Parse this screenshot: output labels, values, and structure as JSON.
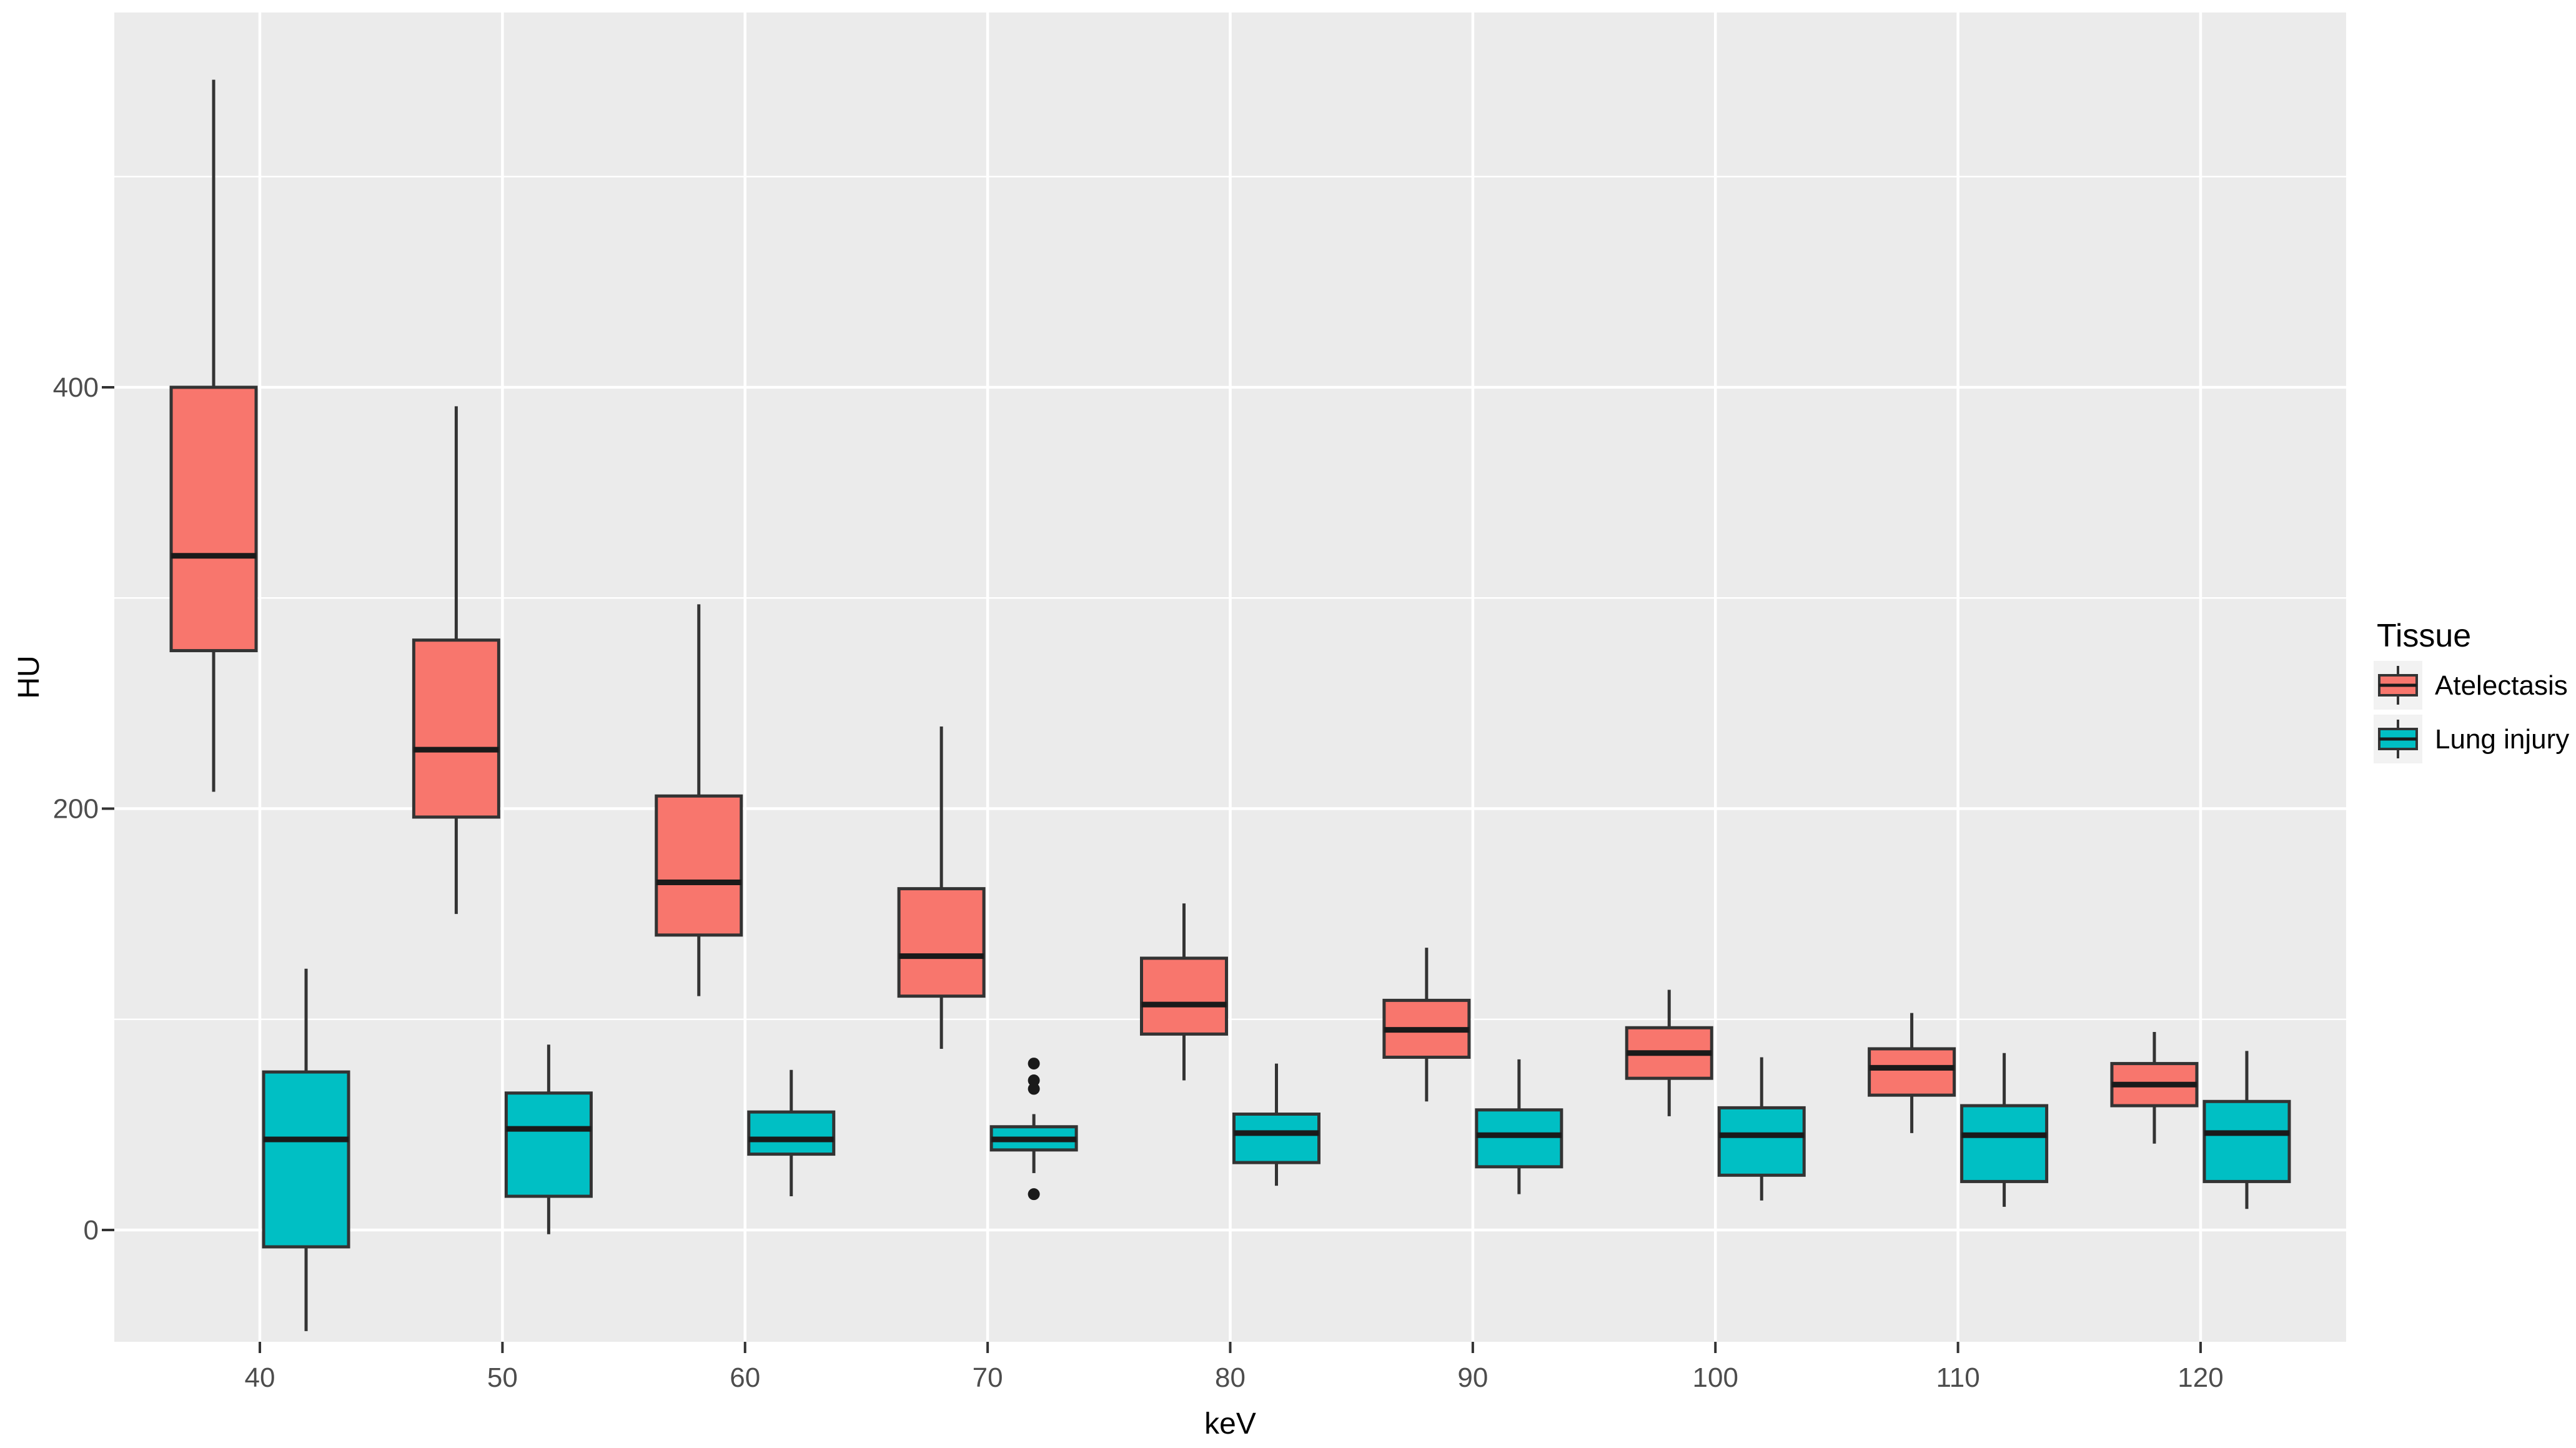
{
  "chart_data": {
    "type": "boxplot",
    "title": "",
    "xlabel": "keV",
    "ylabel": "HU",
    "categories": [
      "40",
      "50",
      "60",
      "70",
      "80",
      "90",
      "100",
      "110",
      "120"
    ],
    "y_ticks": [
      {
        "value": 0,
        "label": "0"
      },
      {
        "value": 200,
        "label": "200"
      },
      {
        "value": 400,
        "label": "400"
      }
    ],
    "y_minor": [
      100,
      300,
      500
    ],
    "ylim": [
      -53,
      578
    ],
    "grid": "horizontal major+minor white lines, vertical major white lines, on gray panel",
    "legend": {
      "title": "Tissue",
      "position": "right"
    },
    "colors": {
      "panel_bg": "#EBEBEB",
      "grid": "#FFFFFF",
      "box_outline": "#333333",
      "median_line": "#1A1A1A",
      "outlier": "#1A1A1A",
      "axis_text": "#4D4D4D",
      "axis_title": "#000000",
      "legend_key_bg": "#F2F2F2",
      "atelectasis": "#F8766D",
      "lung_injury": "#00BFC4"
    },
    "series": [
      {
        "name": "Atelectasis",
        "color": "#F8766D",
        "boxes": [
          {
            "category": "40",
            "min": 208,
            "q1": 275,
            "median": 320,
            "q3": 400,
            "max": 546,
            "outliers": []
          },
          {
            "category": "50",
            "min": 150,
            "q1": 196,
            "median": 228,
            "q3": 280,
            "max": 391,
            "outliers": []
          },
          {
            "category": "60",
            "min": 111,
            "q1": 140,
            "median": 165,
            "q3": 206,
            "max": 297,
            "outliers": []
          },
          {
            "category": "70",
            "min": 86,
            "q1": 111,
            "median": 130,
            "q3": 162,
            "max": 239,
            "outliers": []
          },
          {
            "category": "80",
            "min": 71,
            "q1": 93,
            "median": 107,
            "q3": 129,
            "max": 155,
            "outliers": []
          },
          {
            "category": "90",
            "min": 61,
            "q1": 82,
            "median": 95,
            "q3": 109,
            "max": 134,
            "outliers": []
          },
          {
            "category": "100",
            "min": 54,
            "q1": 72,
            "median": 84,
            "q3": 96,
            "max": 114,
            "outliers": []
          },
          {
            "category": "110",
            "min": 46,
            "q1": 64,
            "median": 77,
            "q3": 86,
            "max": 103,
            "outliers": []
          },
          {
            "category": "120",
            "min": 41,
            "q1": 59,
            "median": 69,
            "q3": 79,
            "max": 94,
            "outliers": []
          }
        ]
      },
      {
        "name": "Lung injury",
        "color": "#00BFC4",
        "boxes": [
          {
            "category": "40",
            "min": -48,
            "q1": -8,
            "median": 43,
            "q3": 75,
            "max": 124,
            "outliers": []
          },
          {
            "category": "50",
            "min": -2,
            "q1": 16,
            "median": 48,
            "q3": 65,
            "max": 88,
            "outliers": []
          },
          {
            "category": "60",
            "min": 16,
            "q1": 36,
            "median": 43,
            "q3": 56,
            "max": 76,
            "outliers": []
          },
          {
            "category": "70",
            "min": 27,
            "q1": 38,
            "median": 43,
            "q3": 49,
            "max": 55,
            "outliers": [
              79,
              71,
              67,
              17
            ]
          },
          {
            "category": "80",
            "min": 21,
            "q1": 32,
            "median": 46,
            "q3": 55,
            "max": 79,
            "outliers": []
          },
          {
            "category": "90",
            "min": 17,
            "q1": 30,
            "median": 45,
            "q3": 57,
            "max": 81,
            "outliers": []
          },
          {
            "category": "100",
            "min": 14,
            "q1": 26,
            "median": 45,
            "q3": 58,
            "max": 82,
            "outliers": []
          },
          {
            "category": "110",
            "min": 11,
            "q1": 23,
            "median": 45,
            "q3": 59,
            "max": 84,
            "outliers": []
          },
          {
            "category": "120",
            "min": 10,
            "q1": 23,
            "median": 46,
            "q3": 61,
            "max": 85,
            "outliers": []
          }
        ]
      }
    ]
  }
}
